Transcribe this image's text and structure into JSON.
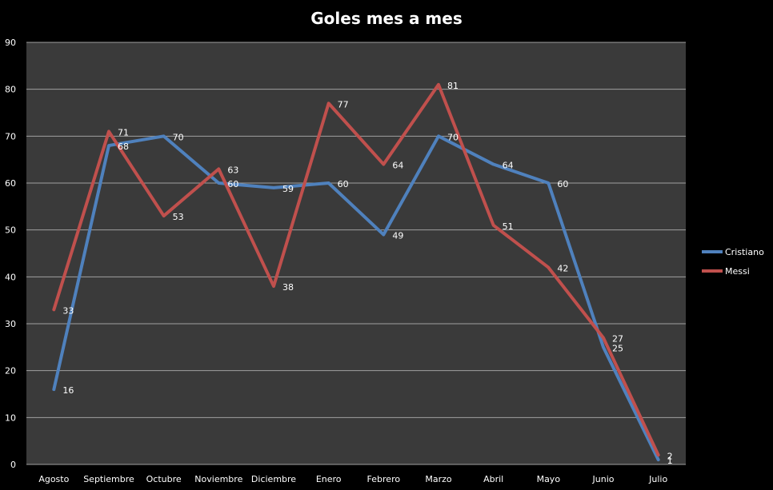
{
  "chart_data": {
    "type": "line",
    "title": "Goles mes a mes",
    "categories": [
      "Agosto",
      "Septiembre",
      "Octubre",
      "Noviembre",
      "Diciembre",
      "Enero",
      "Febrero",
      "Marzo",
      "Abril",
      "Mayo",
      "Junio",
      "Julio"
    ],
    "series": [
      {
        "name": "Cristiano",
        "color": "#4F81BD",
        "values": [
          16,
          68,
          70,
          60,
          59,
          60,
          49,
          70,
          64,
          60,
          25,
          1
        ]
      },
      {
        "name": "Messi",
        "color": "#C0504D",
        "values": [
          33,
          71,
          53,
          63,
          38,
          77,
          64,
          81,
          51,
          42,
          27,
          2
        ]
      }
    ],
    "ylim": [
      0,
      90
    ],
    "yticks": [
      "0",
      "10",
      "20",
      "30",
      "40",
      "50",
      "60",
      "70",
      "80",
      "90"
    ],
    "grid": true,
    "legend_position": "right",
    "colors": {
      "background": "#000000",
      "plot_area": "#3A3A3A",
      "grid": "#A0A0A0",
      "text": "#FFFFFF"
    }
  }
}
